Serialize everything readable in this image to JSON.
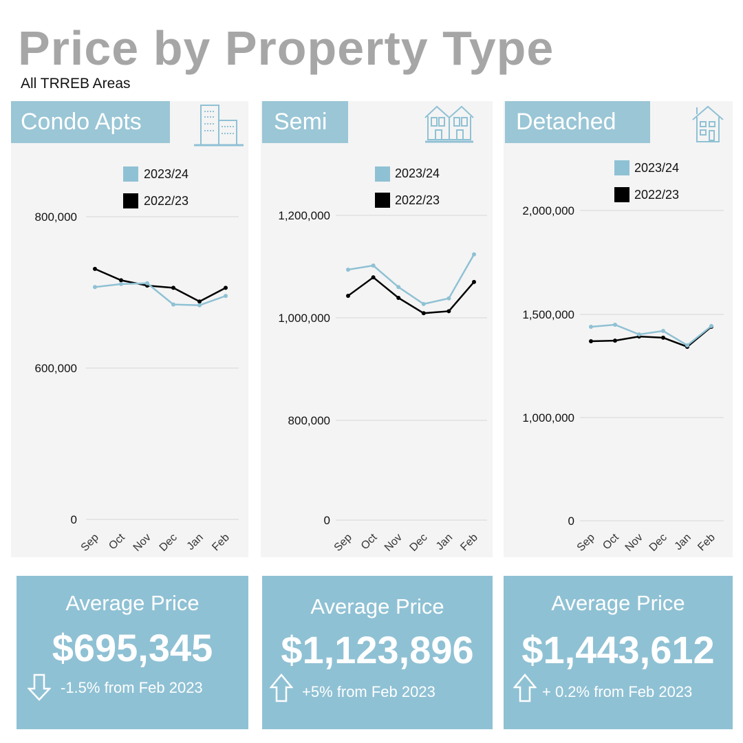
{
  "header": {
    "title": "Price by Property Type",
    "subtitle": "All TRREB Areas"
  },
  "colors": {
    "current": "#8fc1d4",
    "previous": "#000000",
    "tag": "#9ac6d6",
    "panel": "#f4f4f4"
  },
  "legend": [
    "2023/24",
    "2022/23"
  ],
  "chart_data": [
    {
      "type": "line",
      "title": "Condo Apts",
      "icon": "condo-building-icon",
      "categories": [
        "Sep",
        "Oct",
        "Nov",
        "Dec",
        "Jan",
        "Feb"
      ],
      "y_ticks": [
        0,
        600000,
        800000
      ],
      "y_tick_labels": [
        "0",
        "600,000",
        "800,000"
      ],
      "grid": true,
      "legend_placement": "top",
      "series": [
        {
          "name": "2023/24",
          "values": [
            707000,
            711000,
            712000,
            684000,
            683000,
            695345
          ]
        },
        {
          "name": "2022/23",
          "values": [
            731000,
            716000,
            709000,
            706000,
            688000,
            706000
          ]
        }
      ]
    },
    {
      "type": "line",
      "title": "Semi",
      "icon": "semi-house-icon",
      "categories": [
        "Sep",
        "Oct",
        "Nov",
        "Dec",
        "Jan",
        "Feb"
      ],
      "y_ticks": [
        0,
        800000,
        1000000,
        1200000
      ],
      "y_tick_labels": [
        "0",
        "800,000",
        "1,000,000",
        "1,200,000"
      ],
      "grid": true,
      "legend_placement": "top",
      "series": [
        {
          "name": "2023/24",
          "values": [
            1094000,
            1102000,
            1060000,
            1027000,
            1038000,
            1123896
          ]
        },
        {
          "name": "2022/23",
          "values": [
            1043000,
            1079000,
            1039000,
            1009000,
            1013000,
            1070000
          ]
        }
      ]
    },
    {
      "type": "line",
      "title": "Detached",
      "icon": "detached-house-icon",
      "categories": [
        "Sep",
        "Oct",
        "Nov",
        "Dec",
        "Jan",
        "Feb"
      ],
      "y_ticks": [
        0,
        1000000,
        1500000,
        2000000
      ],
      "y_tick_labels": [
        "0",
        "1,000,000",
        "1,500,000",
        "2,000,000"
      ],
      "grid": true,
      "legend_placement": "top",
      "series": [
        {
          "name": "2023/24",
          "values": [
            1440000,
            1450000,
            1403000,
            1420000,
            1350000,
            1443612
          ]
        },
        {
          "name": "2022/23",
          "values": [
            1370000,
            1373000,
            1393000,
            1387000,
            1343000,
            1440000
          ]
        }
      ]
    }
  ],
  "summary": [
    {
      "label": "Average Price",
      "value": "$695,345",
      "change": "-1.5% from Feb 2023",
      "direction": "down"
    },
    {
      "label": "Average Price",
      "value": "$1,123,896",
      "change": "+5% from Feb 2023",
      "direction": "up"
    },
    {
      "label": "Average Price",
      "value": "$1,443,612",
      "change": "+ 0.2% from Feb 2023",
      "direction": "up"
    }
  ]
}
